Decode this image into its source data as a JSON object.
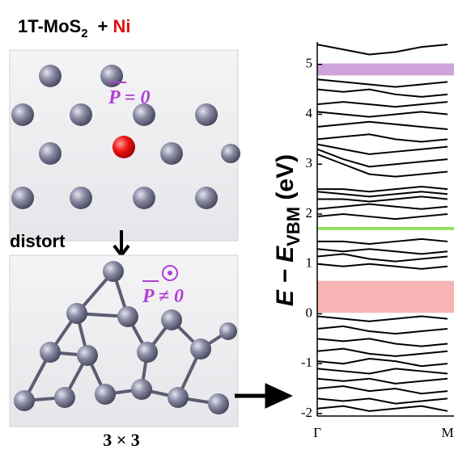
{
  "diagram": {
    "title_main": "1T-MoS",
    "title_sub": "2",
    "title_plus": "+",
    "title_dopant": "Ni",
    "top_label": "P = 0",
    "step_label": "distort",
    "bottom_label": "P ≠ 0",
    "supercell": "3 × 3"
  },
  "chart_data": {
    "type": "line",
    "ylabel": [
      "E − E",
      "VBM",
      " (eV)"
    ],
    "categories": [
      "Γ",
      null,
      null,
      null,
      null,
      "M"
    ],
    "ylim": [
      -2.05,
      5.45
    ],
    "yticks": [
      -2,
      -1,
      0,
      1,
      2,
      3,
      4,
      5
    ],
    "highlights": [
      {
        "color": "#cfa3dc",
        "range": [
          4.78,
          5.02
        ]
      },
      {
        "color": "#8fe05a",
        "range": [
          1.68,
          1.74
        ]
      },
      {
        "color": "#f7b4b4",
        "range": [
          0.02,
          0.66
        ]
      }
    ],
    "series": [
      {
        "color": "#000000",
        "values": [
          5.4,
          5.3,
          5.2,
          5.25,
          5.35,
          5.4
        ]
      },
      {
        "color": "#000000",
        "values": [
          4.7,
          4.65,
          4.6,
          4.55,
          4.6,
          4.65
        ]
      },
      {
        "color": "#000000",
        "values": [
          4.5,
          4.45,
          4.5,
          4.4,
          4.35,
          4.4
        ]
      },
      {
        "color": "#000000",
        "values": [
          4.2,
          4.25,
          4.2,
          4.15,
          4.2,
          4.25
        ]
      },
      {
        "color": "#000000",
        "values": [
          4.05,
          4.0,
          3.95,
          4.0,
          4.05,
          4.0
        ]
      },
      {
        "color": "#000000",
        "values": [
          3.75,
          3.8,
          3.85,
          3.8,
          3.75,
          3.7
        ]
      },
      {
        "color": "#000000",
        "values": [
          3.5,
          3.55,
          3.6,
          3.5,
          3.45,
          3.5
        ]
      },
      {
        "color": "#000000",
        "values": [
          3.4,
          3.3,
          3.2,
          3.25,
          3.3,
          3.35
        ]
      },
      {
        "color": "#000000",
        "values": [
          3.3,
          3.1,
          2.95,
          3.0,
          3.05,
          3.1
        ]
      },
      {
        "color": "#000000",
        "values": [
          3.2,
          3.0,
          2.8,
          2.75,
          2.8,
          2.85
        ]
      },
      {
        "color": "#000000",
        "values": [
          2.5,
          2.5,
          2.45,
          2.5,
          2.55,
          2.5
        ]
      },
      {
        "color": "#000000",
        "values": [
          2.45,
          2.4,
          2.35,
          2.4,
          2.45,
          2.4
        ]
      },
      {
        "color": "#000000",
        "values": [
          2.3,
          2.3,
          2.25,
          2.3,
          2.35,
          2.3
        ]
      },
      {
        "color": "#000000",
        "values": [
          2.1,
          2.15,
          2.2,
          2.15,
          2.1,
          2.15
        ]
      },
      {
        "color": "#000000",
        "values": [
          1.95,
          2.0,
          1.95,
          1.9,
          1.95,
          2.0
        ]
      },
      {
        "color": "#000000",
        "values": [
          1.45,
          1.45,
          1.4,
          1.45,
          1.5,
          1.45
        ]
      },
      {
        "color": "#000000",
        "values": [
          1.3,
          1.25,
          1.3,
          1.25,
          1.2,
          1.25
        ]
      },
      {
        "color": "#000000",
        "values": [
          1.15,
          1.2,
          1.1,
          1.05,
          1.1,
          1.15
        ]
      },
      {
        "color": "#000000",
        "values": [
          1.0,
          0.95,
          1.0,
          0.95,
          0.9,
          0.95
        ]
      },
      {
        "color": "#000000",
        "values": [
          -0.05,
          -0.1,
          -0.15,
          -0.1,
          -0.05,
          -0.1
        ]
      },
      {
        "color": "#000000",
        "values": [
          -0.3,
          -0.25,
          -0.35,
          -0.4,
          -0.35,
          -0.3
        ]
      },
      {
        "color": "#000000",
        "values": [
          -0.5,
          -0.55,
          -0.5,
          -0.6,
          -0.65,
          -0.6
        ]
      },
      {
        "color": "#000000",
        "values": [
          -0.75,
          -0.7,
          -0.8,
          -0.85,
          -0.8,
          -0.75
        ]
      },
      {
        "color": "#000000",
        "values": [
          -0.95,
          -1.0,
          -0.9,
          -0.95,
          -1.05,
          -1.0
        ]
      },
      {
        "color": "#000000",
        "values": [
          -1.1,
          -1.15,
          -1.2,
          -1.1,
          -1.15,
          -1.2
        ]
      },
      {
        "color": "#000000",
        "values": [
          -1.3,
          -1.35,
          -1.3,
          -1.4,
          -1.35,
          -1.3
        ]
      },
      {
        "color": "#000000",
        "values": [
          -1.5,
          -1.45,
          -1.55,
          -1.5,
          -1.6,
          -1.55
        ]
      },
      {
        "color": "#000000",
        "values": [
          -1.7,
          -1.75,
          -1.7,
          -1.8,
          -1.75,
          -1.7
        ]
      },
      {
        "color": "#000000",
        "values": [
          -1.9,
          -1.85,
          -1.95,
          -1.9,
          -1.85,
          -1.95
        ]
      }
    ]
  }
}
